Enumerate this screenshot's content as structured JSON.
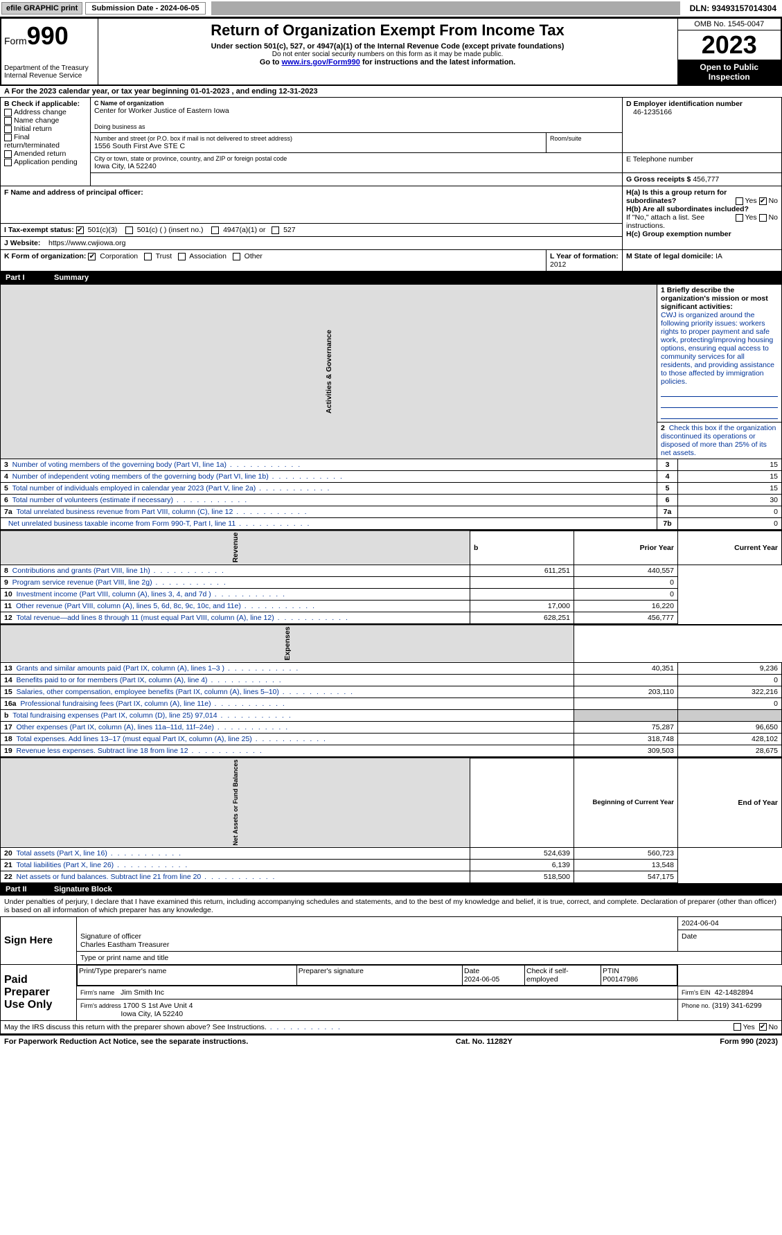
{
  "topbar": {
    "efile": "efile GRAPHIC print",
    "submission_label": "Submission Date - 2024-06-05",
    "dln": "DLN: 93493157014304"
  },
  "header": {
    "form_label": "Form",
    "form_number": "990",
    "dept": "Department of the Treasury",
    "irs": "Internal Revenue Service",
    "title": "Return of Organization Exempt From Income Tax",
    "sub1": "Under section 501(c), 527, or 4947(a)(1) of the Internal Revenue Code (except private foundations)",
    "sub2": "Do not enter social security numbers on this form as it may be made public.",
    "sub3_prefix": "Go to ",
    "sub3_link": "www.irs.gov/Form990",
    "sub3_suffix": " for instructions and the latest information.",
    "omb": "OMB No. 1545-0047",
    "year": "2023",
    "open": "Open to Public Inspection"
  },
  "section_a": {
    "text": "A  For the 2023 calendar year, or tax year beginning 01-01-2023    , and ending 12-31-2023"
  },
  "box_b": {
    "label": "B Check if applicable:",
    "opts": [
      "Address change",
      "Name change",
      "Initial return",
      "Final return/terminated",
      "Amended return",
      "Application pending"
    ]
  },
  "box_c": {
    "name_label": "C Name of organization",
    "name": "Center for Worker Justice of Eastern Iowa",
    "dba_label": "Doing business as",
    "addr_label": "Number and street (or P.O. box if mail is not delivered to street address)",
    "addr": "1556 South First Ave STE C",
    "room_label": "Room/suite",
    "city_label": "City or town, state or province, country, and ZIP or foreign postal code",
    "city": "Iowa City, IA  52240"
  },
  "box_d": {
    "label": "D Employer identification number",
    "value": "46-1235166"
  },
  "box_e": {
    "label": "E Telephone number"
  },
  "box_g": {
    "label": "G Gross receipts $",
    "value": "456,777"
  },
  "box_f": {
    "label": "F  Name and address of principal officer:"
  },
  "box_h": {
    "ha": "H(a)  Is this a group return for subordinates?",
    "hb": "H(b)  Are all subordinates included?",
    "hb_note": "If \"No,\" attach a list. See instructions.",
    "hc": "H(c)  Group exemption number",
    "yes": "Yes",
    "no": "No"
  },
  "box_i": {
    "label": "I    Tax-exempt status:",
    "o1": "501(c)(3)",
    "o2": "501(c) (  ) (insert no.)",
    "o3": "4947(a)(1) or",
    "o4": "527"
  },
  "box_j": {
    "label": "J    Website:",
    "value": "https://www.cwjiowa.org"
  },
  "box_k": {
    "label": "K Form of organization:",
    "o1": "Corporation",
    "o2": "Trust",
    "o3": "Association",
    "o4": "Other"
  },
  "box_l": {
    "label": "L Year of formation:",
    "value": "2012"
  },
  "box_m": {
    "label": "M State of legal domicile:",
    "value": "IA"
  },
  "part1": {
    "title_num": "Part I",
    "title": "Summary",
    "vert_label": "Activities & Governance",
    "line1_label": "1   Briefly describe the organization's mission or most significant activities:",
    "line1_text": "CWJ is organized around the following priority issues: workers rights to proper payment and safe work, protecting/improving housing options, ensuring equal access to community services for all residents, and providing assistance to those affected by immigration policies.",
    "line2": "Check this box         if the organization discontinued its operations or disposed of more than 25% of its net assets.",
    "lines": [
      {
        "n": "3",
        "d": "Number of voting members of the governing body (Part VI, line 1a)",
        "ref": "3",
        "v": "15"
      },
      {
        "n": "4",
        "d": "Number of independent voting members of the governing body (Part VI, line 1b)",
        "ref": "4",
        "v": "15"
      },
      {
        "n": "5",
        "d": "Total number of individuals employed in calendar year 2023 (Part V, line 2a)",
        "ref": "5",
        "v": "15"
      },
      {
        "n": "6",
        "d": "Total number of volunteers (estimate if necessary)",
        "ref": "6",
        "v": "30"
      },
      {
        "n": "7a",
        "d": "Total unrelated business revenue from Part VIII, column (C), line 12",
        "ref": "7a",
        "v": "0"
      },
      {
        "n": "",
        "d": "Net unrelated business taxable income from Form 990-T, Part I, line 11",
        "ref": "7b",
        "v": "0"
      }
    ],
    "col_prior": "Prior Year",
    "col_current": "Current Year",
    "revenue_label": "Revenue",
    "revenue": [
      {
        "n": "8",
        "d": "Contributions and grants (Part VIII, line 1h)",
        "p": "611,251",
        "c": "440,557"
      },
      {
        "n": "9",
        "d": "Program service revenue (Part VIII, line 2g)",
        "p": "",
        "c": "0"
      },
      {
        "n": "10",
        "d": "Investment income (Part VIII, column (A), lines 3, 4, and 7d )",
        "p": "",
        "c": "0"
      },
      {
        "n": "11",
        "d": "Other revenue (Part VIII, column (A), lines 5, 6d, 8c, 9c, 10c, and 11e)",
        "p": "17,000",
        "c": "16,220"
      },
      {
        "n": "12",
        "d": "Total revenue—add lines 8 through 11 (must equal Part VIII, column (A), line 12)",
        "p": "628,251",
        "c": "456,777"
      }
    ],
    "expenses_label": "Expenses",
    "expenses": [
      {
        "n": "13",
        "d": "Grants and similar amounts paid (Part IX, column (A), lines 1–3 )",
        "p": "40,351",
        "c": "9,236"
      },
      {
        "n": "14",
        "d": "Benefits paid to or for members (Part IX, column (A), line 4)",
        "p": "",
        "c": "0"
      },
      {
        "n": "15",
        "d": "Salaries, other compensation, employee benefits (Part IX, column (A), lines 5–10)",
        "p": "203,110",
        "c": "322,216"
      },
      {
        "n": "16a",
        "d": "Professional fundraising fees (Part IX, column (A), line 11e)",
        "p": "",
        "c": "0"
      },
      {
        "n": "b",
        "d": "Total fundraising expenses (Part IX, column (D), line 25) 97,014",
        "p": "GRAY",
        "c": "GRAY"
      },
      {
        "n": "17",
        "d": "Other expenses (Part IX, column (A), lines 11a–11d, 11f–24e)",
        "p": "75,287",
        "c": "96,650"
      },
      {
        "n": "18",
        "d": "Total expenses. Add lines 13–17 (must equal Part IX, column (A), line 25)",
        "p": "318,748",
        "c": "428,102"
      },
      {
        "n": "19",
        "d": "Revenue less expenses. Subtract line 18 from line 12",
        "p": "309,503",
        "c": "28,675"
      }
    ],
    "netassets_label": "Net Assets or Fund Balances",
    "col_boy": "Beginning of Current Year",
    "col_eoy": "End of Year",
    "netassets": [
      {
        "n": "20",
        "d": "Total assets (Part X, line 16)",
        "p": "524,639",
        "c": "560,723"
      },
      {
        "n": "21",
        "d": "Total liabilities (Part X, line 26)",
        "p": "6,139",
        "c": "13,548"
      },
      {
        "n": "22",
        "d": "Net assets or fund balances. Subtract line 21 from line 20",
        "p": "518,500",
        "c": "547,175"
      }
    ]
  },
  "part2": {
    "title_num": "Part II",
    "title": "Signature Block",
    "perjury": "Under penalties of perjury, I declare that I have examined this return, including accompanying schedules and statements, and to the best of my knowledge and belief, it is true, correct, and complete. Declaration of preparer (other than officer) is based on all information of which preparer has any knowledge.",
    "sign_here": "Sign Here",
    "sig_officer": "Signature of officer",
    "sig_date": "2024-06-04",
    "officer_name": "Charles Eastham Treasurer",
    "type_name": "Type or print name and title",
    "paid_prep": "Paid Preparer Use Only",
    "prep_name_label": "Print/Type preparer's name",
    "prep_sig_label": "Preparer's signature",
    "prep_date_label": "Date",
    "prep_date": "2024-06-05",
    "check_if": "Check         if self-employed",
    "ptin_label": "PTIN",
    "ptin": "P00147986",
    "firm_name_label": "Firm's name",
    "firm_name": "Jim Smith Inc",
    "firm_ein_label": "Firm's EIN",
    "firm_ein": "42-1482894",
    "firm_addr_label": "Firm's address",
    "firm_addr1": "1700 S 1st Ave Unit 4",
    "firm_addr2": "Iowa City, IA  52240",
    "phone_label": "Phone no.",
    "phone": "(319) 341-6299",
    "discuss": "May the IRS discuss this return with the preparer shown above? See Instructions.",
    "yes": "Yes",
    "no": "No"
  },
  "footer": {
    "left": "For Paperwork Reduction Act Notice, see the separate instructions.",
    "mid": "Cat. No. 11282Y",
    "right": "Form 990 (2023)"
  }
}
